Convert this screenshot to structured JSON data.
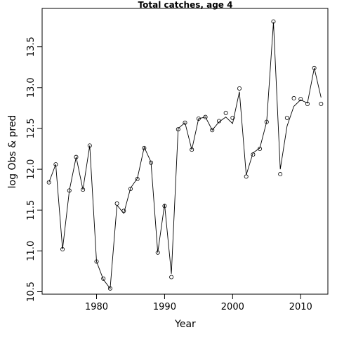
{
  "chart_data": {
    "type": "line",
    "title": "Total catches, age 4",
    "xlabel": "Year",
    "ylabel": "log Obs & pred",
    "xlim": [
      1972,
      2014
    ],
    "ylim": [
      10.47,
      13.97
    ],
    "xticks": [
      1980,
      1990,
      2000,
      2010
    ],
    "xtick_labels": [
      "1980",
      "1990",
      "2000",
      "2010"
    ],
    "yticks": [
      10.5,
      11.0,
      11.5,
      12.0,
      12.5,
      13.0,
      13.5
    ],
    "ytick_labels": [
      "10.5",
      "11.0",
      "11.5",
      "12.0",
      "12.5",
      "13.0",
      "13.5"
    ],
    "grid": false,
    "legend": "none",
    "series": [
      {
        "style": "points",
        "marker": "open-circle",
        "x": [
          1973,
          1974,
          1975,
          1976,
          1977,
          1978,
          1979,
          1980,
          1981,
          1982,
          1983,
          1984,
          1985,
          1986,
          1987,
          1988,
          1989,
          1990,
          1991,
          1992,
          1993,
          1994,
          1995,
          1996,
          1997,
          1998,
          1999,
          2000,
          2001,
          2002,
          2003,
          2004,
          2005,
          2006,
          2007,
          2008,
          2009,
          2010,
          2011,
          2012,
          2013
        ],
        "y": [
          11.84,
          12.06,
          11.02,
          11.74,
          12.15,
          11.75,
          12.29,
          10.87,
          10.66,
          10.54,
          11.58,
          11.49,
          11.76,
          11.88,
          12.26,
          12.08,
          10.98,
          11.55,
          10.68,
          12.49,
          12.57,
          12.24,
          12.62,
          12.64,
          12.48,
          12.59,
          12.69,
          12.63,
          12.99,
          11.91,
          12.18,
          12.25,
          12.58,
          13.81,
          11.94,
          12.63,
          12.87,
          12.86,
          12.8,
          13.24,
          12.8
        ]
      },
      {
        "style": "line",
        "color": "#000000",
        "x": [
          1973,
          1974,
          1975,
          1976,
          1977,
          1978,
          1979,
          1980,
          1981,
          1982,
          1983,
          1984,
          1985,
          1986,
          1987,
          1988,
          1989,
          1990,
          1991,
          1992,
          1993,
          1994,
          1995,
          1996,
          1997,
          1998,
          1999,
          2000,
          2001,
          2002,
          2003,
          2004,
          2005,
          2006,
          2007,
          2008,
          2009,
          2010,
          2011,
          2012,
          2013
        ],
        "y": [
          11.84,
          12.06,
          11.02,
          11.74,
          12.15,
          11.75,
          12.29,
          10.87,
          10.65,
          10.54,
          11.56,
          11.46,
          11.77,
          11.89,
          12.27,
          12.09,
          10.98,
          11.57,
          10.72,
          12.5,
          12.57,
          12.24,
          12.62,
          12.64,
          12.48,
          12.58,
          12.64,
          12.56,
          12.95,
          11.93,
          12.2,
          12.26,
          12.58,
          13.8,
          12.0,
          12.53,
          12.77,
          12.85,
          12.81,
          13.24,
          12.88
        ]
      }
    ]
  }
}
